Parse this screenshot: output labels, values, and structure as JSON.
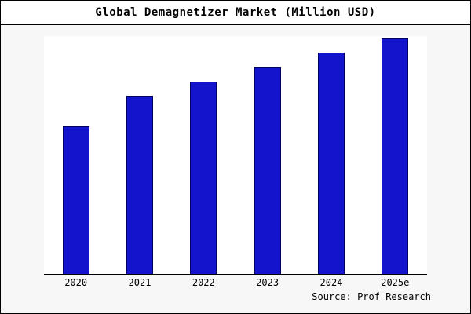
{
  "title": "Global Demagnetizer Market (Million USD)",
  "source": "Source: Prof Research",
  "colors": {
    "bar_fill": "#1414cc",
    "bar_border": "#000066",
    "background": "#f7f7f7",
    "plot_background": "#ffffff"
  },
  "chart_data": {
    "type": "bar",
    "title": "Global Demagnetizer Market (Million USD)",
    "categories": [
      "2020",
      "2021",
      "2022",
      "2023",
      "2024",
      "2025e"
    ],
    "values": [
      62,
      75,
      81,
      87,
      93,
      99
    ],
    "xlabel": "",
    "ylabel": "",
    "ylim": [
      0,
      100
    ],
    "grid": false,
    "legend": "none",
    "annotation": "Source: Prof Research"
  }
}
